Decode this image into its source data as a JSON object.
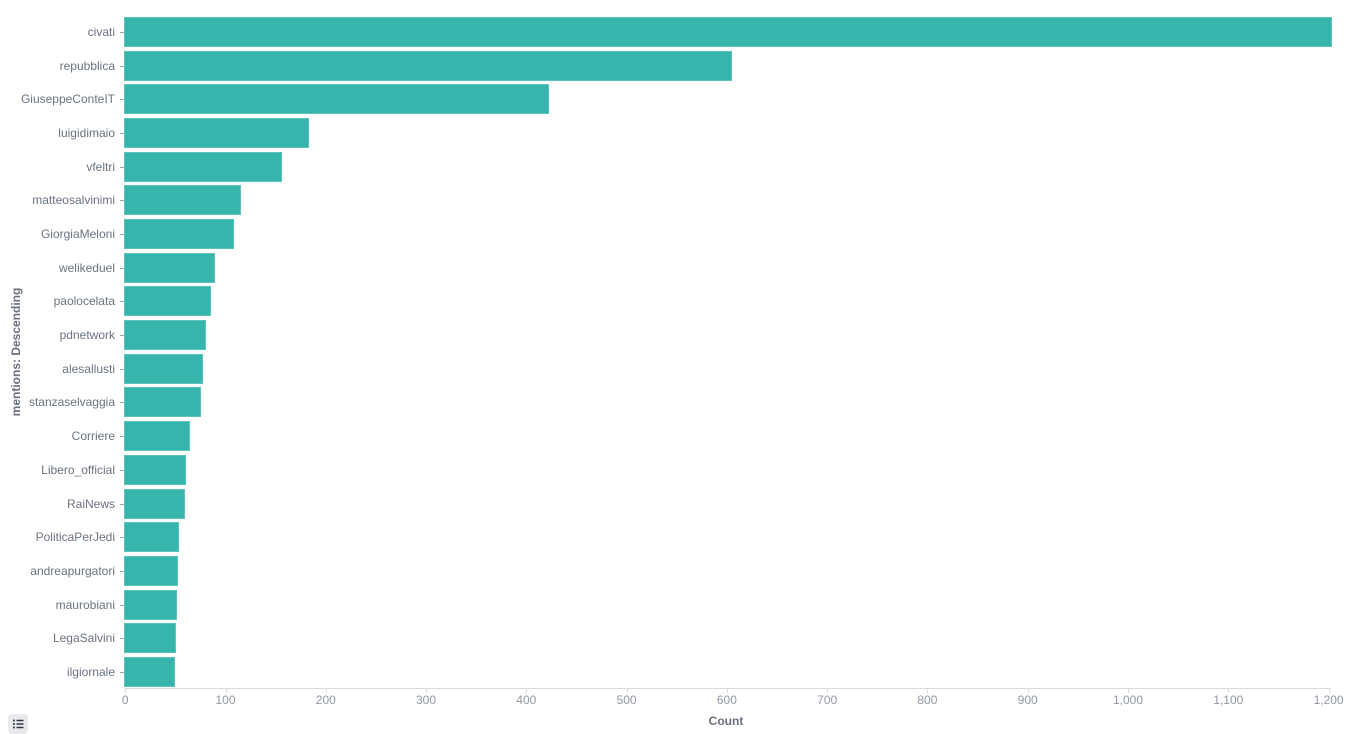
{
  "chart_data": {
    "type": "bar",
    "orientation": "horizontal",
    "title": "",
    "xlabel": "Count",
    "ylabel": "mentions: Descending",
    "xlim": [
      0,
      1200
    ],
    "grid": false,
    "legend": "none",
    "categories": [
      "civati",
      "repubblica",
      "GiuseppeConteIT",
      "luigidimaio",
      "vfeltri",
      "matteosalvinimi",
      "GiorgiaMeloni",
      "welikeduel",
      "paolocelata",
      "pdnetwork",
      "alesallusti",
      "stanzaselvaggia",
      "Corriere",
      "Libero_official",
      "RaiNews",
      "PoliticaPerJedi",
      "andreapurgatori",
      "maurobiani",
      "LegaSalvini",
      "ilgiornale"
    ],
    "values": [
      1205,
      606,
      424,
      184,
      158,
      117,
      110,
      91,
      87,
      82,
      79,
      77,
      66,
      62,
      61,
      55,
      54,
      53,
      52,
      51
    ],
    "xticks": [
      {
        "value": 0,
        "label": "0"
      },
      {
        "value": 100,
        "label": "100"
      },
      {
        "value": 200,
        "label": "200"
      },
      {
        "value": 300,
        "label": "300"
      },
      {
        "value": 400,
        "label": "400"
      },
      {
        "value": 500,
        "label": "500"
      },
      {
        "value": 600,
        "label": "600"
      },
      {
        "value": 700,
        "label": "700"
      },
      {
        "value": 800,
        "label": "800"
      },
      {
        "value": 900,
        "label": "900"
      },
      {
        "value": 1000,
        "label": "1,000"
      },
      {
        "value": 1100,
        "label": "1,100"
      },
      {
        "value": 1200,
        "label": "1,200"
      }
    ]
  },
  "colors": {
    "bar_fill": "#36B5AC",
    "bar_border": "#5CC4BC",
    "axis_line": "#D8DBE0",
    "y_label": "#6A7380",
    "x_label": "#8F98A3",
    "axis_title": "#69707D",
    "tick_mark": "#98A2B3",
    "button_bg": "#E7E9EC",
    "button_icon": "#343741"
  },
  "controls": {
    "legend_toggle_icon": "list-icon"
  }
}
